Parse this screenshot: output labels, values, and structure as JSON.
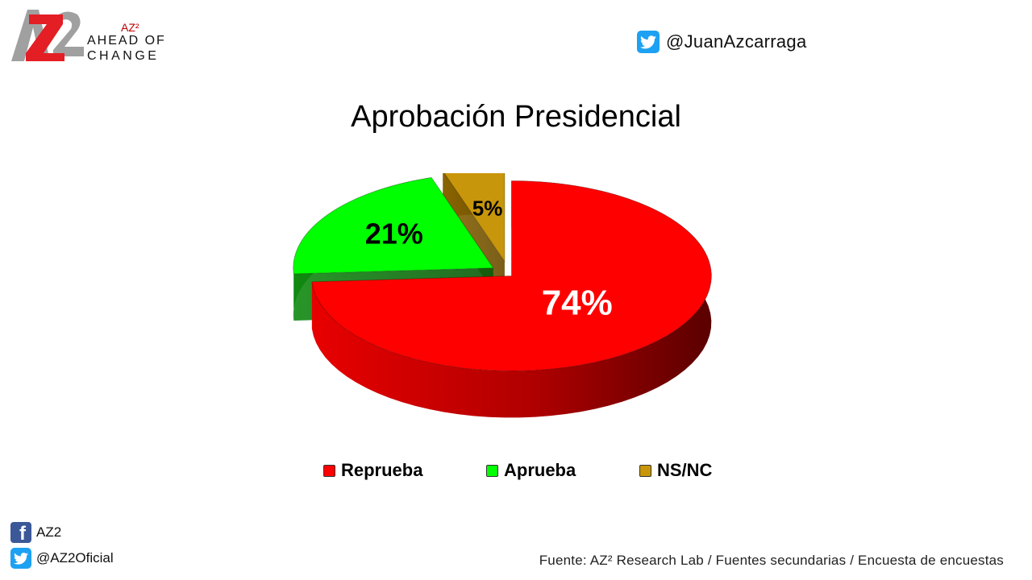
{
  "brand": {
    "logo_text": "AZ2",
    "superscript_label": "AZ²",
    "tagline_line1": "AHEAD OF",
    "tagline_line2": "CHANGE"
  },
  "header": {
    "twitter_handle": "@JuanAzcarraga"
  },
  "chart_data": {
    "type": "pie",
    "title": "Aprobación Presidencial",
    "style": "3d-exploded",
    "legend_position": "bottom",
    "slices": [
      {
        "label": "Reprueba",
        "value": 74,
        "display": "74%",
        "color": "#ff0000"
      },
      {
        "label": "Aprueba",
        "value": 21,
        "display": "21%",
        "color": "#00ff00"
      },
      {
        "label": "NS/NC",
        "value": 5,
        "display": "5%",
        "color": "#c8960a"
      }
    ]
  },
  "footer": {
    "facebook_label": "AZ2",
    "twitter_label": "@AZ2Oficial",
    "source": "Fuente: AZ² Research Lab / Fuentes secundarias / Encuesta de encuestas"
  },
  "colors": {
    "brand_red": "#e31e24",
    "brand_gray": "#a0a0a0",
    "twitter_blue": "#1da1f2",
    "facebook_blue": "#3b5998"
  }
}
